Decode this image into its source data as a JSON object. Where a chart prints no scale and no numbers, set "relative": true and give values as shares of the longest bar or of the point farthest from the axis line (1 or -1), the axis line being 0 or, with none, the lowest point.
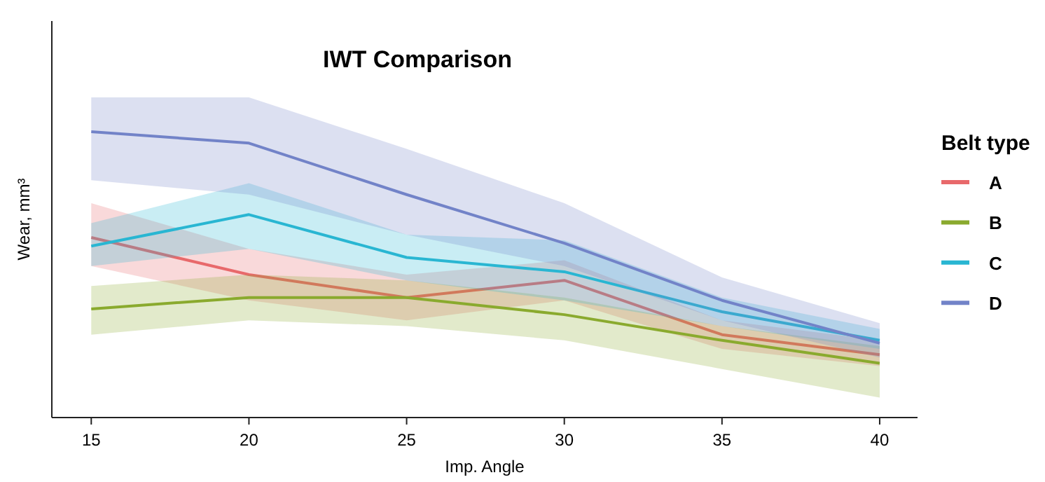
{
  "chart_data": {
    "type": "line",
    "title": "IWT Comparison",
    "xlabel": "Imp. Angle",
    "ylabel": "Wear, mm³",
    "legend_title": "Belt type",
    "legend": "right",
    "relative": true,
    "grid": false,
    "marker": "none",
    "xlim": [
      13.75,
      41.2
    ],
    "xticks": [
      15,
      20,
      25,
      30,
      35,
      40
    ],
    "x": [
      15,
      20,
      25,
      30,
      35,
      40
    ],
    "series": [
      {
        "name": "A",
        "color": "#e8696b",
        "values": [
          0.63,
          0.5,
          0.42,
          0.48,
          0.29,
          0.22
        ],
        "upper": [
          0.75,
          0.59,
          0.5,
          0.55,
          0.34,
          0.27
        ],
        "lower": [
          0.53,
          0.41,
          0.34,
          0.41,
          0.24,
          0.18
        ]
      },
      {
        "name": "B",
        "color": "#8aaa2e",
        "values": [
          0.38,
          0.42,
          0.42,
          0.36,
          0.27,
          0.19
        ],
        "upper": [
          0.46,
          0.5,
          0.48,
          0.42,
          0.32,
          0.25
        ],
        "lower": [
          0.29,
          0.34,
          0.32,
          0.27,
          0.17,
          0.07
        ]
      },
      {
        "name": "C",
        "color": "#29b6d2",
        "values": [
          0.6,
          0.71,
          0.56,
          0.51,
          0.37,
          0.27
        ],
        "upper": [
          0.68,
          0.82,
          0.64,
          0.62,
          0.42,
          0.31
        ],
        "lower": [
          0.53,
          0.59,
          0.48,
          0.41,
          0.32,
          0.24
        ]
      },
      {
        "name": "D",
        "color": "#7283c8",
        "values": [
          1,
          0.96,
          0.78,
          0.61,
          0.41,
          0.26
        ],
        "upper": [
          1.12,
          1.12,
          0.94,
          0.75,
          0.49,
          0.33
        ],
        "lower": [
          0.83,
          0.78,
          0.64,
          0.53,
          0.34,
          0.21
        ]
      }
    ]
  }
}
